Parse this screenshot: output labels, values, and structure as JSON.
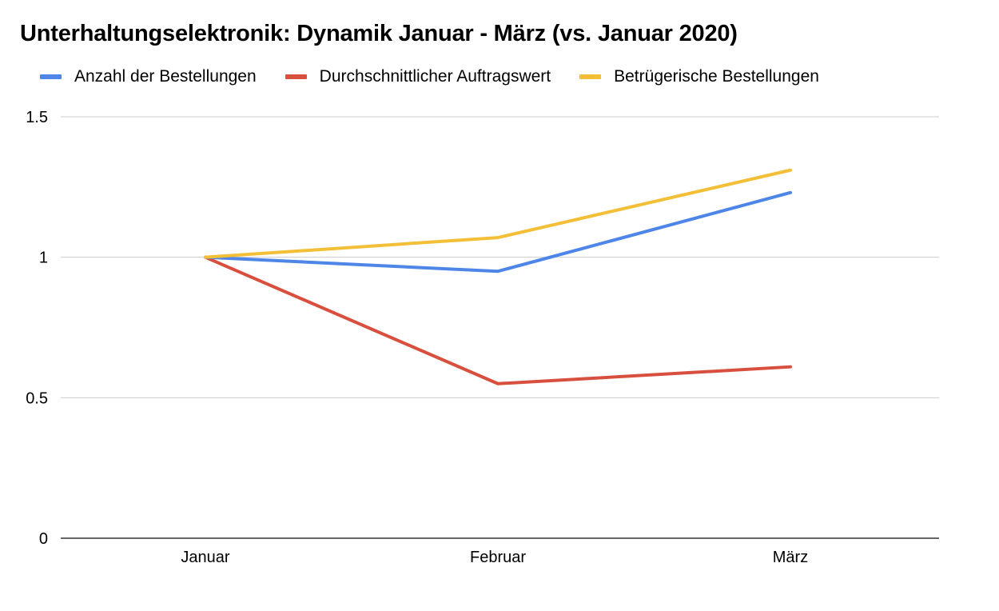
{
  "chart_data": {
    "type": "line",
    "title": "Unterhaltungselektronik: Dynamik Januar - März (vs. Januar 2020)",
    "xlabel": "",
    "ylabel": "",
    "categories": [
      "Januar",
      "Februar",
      "März"
    ],
    "ylim": [
      0,
      1.5
    ],
    "yticks": [
      0,
      0.5,
      1,
      1.5
    ],
    "ytick_labels": [
      "0",
      "0.5",
      "1",
      "1.5"
    ],
    "grid": true,
    "legend_position": "top-left",
    "series": [
      {
        "name": "Anzahl der Bestellungen",
        "color": "#4e86e8",
        "values": [
          1.0,
          0.95,
          1.23
        ]
      },
      {
        "name": "Durchschnittlicher Auftragswert",
        "color": "#d94f3d",
        "values": [
          1.0,
          0.55,
          0.61
        ]
      },
      {
        "name": "Betrügerische Bestellungen",
        "color": "#f2bf36",
        "values": [
          1.0,
          1.07,
          1.31
        ]
      }
    ]
  }
}
